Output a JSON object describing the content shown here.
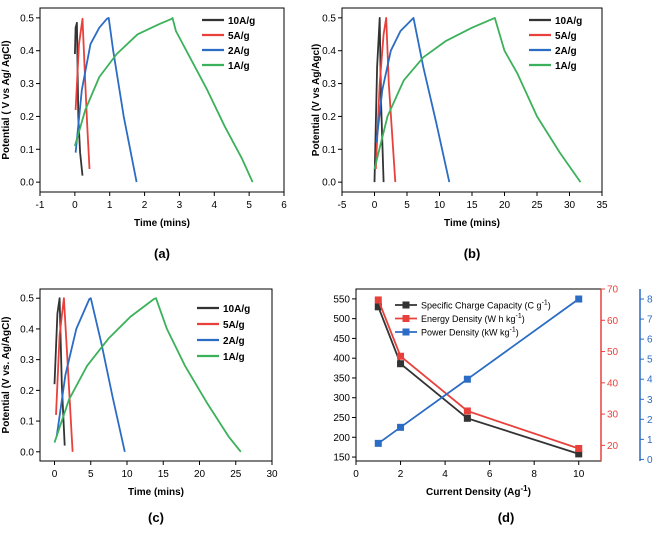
{
  "chart_data": [
    {
      "id": "a",
      "type": "line",
      "panel_label": "(a)",
      "xlabel": "Time (mins)",
      "ylabel": "Potential ( V vs Ag/ AgCl)",
      "xlim": [
        -1,
        6
      ],
      "ylim": [
        -0.03,
        0.53
      ],
      "xticks": [
        "-1",
        "0",
        "1",
        "2",
        "3",
        "4",
        "5",
        "6"
      ],
      "yticks": [
        "0.0",
        "0.1",
        "0.2",
        "0.3",
        "0.4",
        "0.5"
      ],
      "legend_position": "top-right",
      "series": [
        {
          "name": "10A/g",
          "color": "#333333",
          "x": [
            0.0,
            0.02,
            0.06,
            0.1,
            0.15,
            0.22
          ],
          "y": [
            0.39,
            0.47,
            0.485,
            0.2,
            0.09,
            0.02
          ]
        },
        {
          "name": "5A/g",
          "color": "#e8413c",
          "x": [
            0.02,
            0.12,
            0.22,
            0.3,
            0.35,
            0.42
          ],
          "y": [
            0.22,
            0.42,
            0.497,
            0.3,
            0.18,
            0.04
          ]
        },
        {
          "name": "2A/g",
          "color": "#2b6cc4",
          "x": [
            0.02,
            0.2,
            0.45,
            0.7,
            0.92,
            0.97,
            1.1,
            1.4,
            1.77
          ],
          "y": [
            0.09,
            0.28,
            0.42,
            0.47,
            0.497,
            0.5,
            0.4,
            0.2,
            0.0
          ]
        },
        {
          "name": "1A/g",
          "color": "#3cb15b",
          "x": [
            0.0,
            0.3,
            0.7,
            1.2,
            1.8,
            2.4,
            2.78,
            2.8,
            2.9,
            3.3,
            3.8,
            4.3,
            4.8,
            5.1
          ],
          "y": [
            0.11,
            0.22,
            0.32,
            0.39,
            0.45,
            0.48,
            0.497,
            0.5,
            0.46,
            0.38,
            0.28,
            0.17,
            0.07,
            0.0
          ]
        }
      ]
    },
    {
      "id": "b",
      "type": "line",
      "panel_label": "(b)",
      "xlabel": "Time (mins)",
      "ylabel": "Potential (V vs Ag/Agcl)",
      "xlim": [
        -5,
        35
      ],
      "ylim": [
        -0.03,
        0.53
      ],
      "xticks": [
        "-5",
        "0",
        "5",
        "10",
        "15",
        "20",
        "25",
        "30",
        "35"
      ],
      "yticks": [
        "0.0",
        "0.1",
        "0.2",
        "0.3",
        "0.4",
        "0.5"
      ],
      "legend_position": "top-right",
      "series": [
        {
          "name": "10A/g",
          "color": "#333333",
          "x": [
            0.0,
            0.4,
            0.8,
            1.0,
            1.4
          ],
          "y": [
            0.0,
            0.35,
            0.5,
            0.25,
            0.0
          ]
        },
        {
          "name": "5A/g",
          "color": "#e8413c",
          "x": [
            0.2,
            0.8,
            1.4,
            1.8,
            2.2,
            3.2
          ],
          "y": [
            0.04,
            0.3,
            0.45,
            0.5,
            0.3,
            0.0
          ]
        },
        {
          "name": "2A/g",
          "color": "#2b6cc4",
          "x": [
            0.3,
            1.2,
            2.5,
            4.0,
            5.5,
            6.0,
            7.5,
            9.5,
            11.5
          ],
          "y": [
            0.12,
            0.28,
            0.4,
            0.46,
            0.49,
            0.5,
            0.35,
            0.18,
            0.0
          ]
        },
        {
          "name": "1A/g",
          "color": "#3cb15b",
          "x": [
            0.0,
            2.0,
            4.5,
            7.5,
            11.0,
            15.0,
            18.2,
            18.5,
            20.0,
            22.0,
            25.0,
            28.5,
            31.7
          ],
          "y": [
            0.04,
            0.2,
            0.31,
            0.38,
            0.43,
            0.47,
            0.497,
            0.5,
            0.4,
            0.33,
            0.2,
            0.09,
            0.0
          ]
        }
      ]
    },
    {
      "id": "c",
      "type": "line",
      "panel_label": "(c)",
      "xlabel": "Time (mins)",
      "ylabel": "Potential (V vs. Ag/AgCl)",
      "xlim": [
        -2,
        30
      ],
      "ylim": [
        -0.03,
        0.53
      ],
      "xticks": [
        "0",
        "5",
        "10",
        "15",
        "20",
        "25",
        "30"
      ],
      "yticks": [
        "0.0",
        "0.1",
        "0.2",
        "0.3",
        "0.4",
        "0.5"
      ],
      "legend_position": "top-right",
      "series": [
        {
          "name": "10A/g",
          "color": "#333333",
          "x": [
            0.0,
            0.4,
            0.7,
            1.0,
            1.4
          ],
          "y": [
            0.22,
            0.45,
            0.5,
            0.22,
            0.02
          ]
        },
        {
          "name": "5A/g",
          "color": "#e8413c",
          "x": [
            0.2,
            0.7,
            1.3,
            1.9,
            2.5
          ],
          "y": [
            0.12,
            0.38,
            0.5,
            0.25,
            0.0
          ]
        },
        {
          "name": "2A/g",
          "color": "#2b6cc4",
          "x": [
            0.3,
            1.5,
            3.0,
            4.8,
            5.0,
            6.5,
            8.0,
            9.7
          ],
          "y": [
            0.05,
            0.25,
            0.4,
            0.497,
            0.5,
            0.35,
            0.18,
            0.0
          ]
        },
        {
          "name": "1A/g",
          "color": "#3cb15b",
          "x": [
            0.0,
            2.0,
            4.5,
            7.5,
            10.5,
            13.7,
            14.0,
            15.5,
            18.0,
            21.0,
            24.0,
            25.7
          ],
          "y": [
            0.03,
            0.17,
            0.28,
            0.37,
            0.44,
            0.497,
            0.5,
            0.4,
            0.28,
            0.16,
            0.05,
            0.0
          ]
        }
      ]
    },
    {
      "id": "d",
      "type": "line",
      "panel_label": "(d)",
      "xlabel": "Current Density (Ag",
      "xlabel_sup": "-1",
      "xlabel_tail": ")",
      "xlim": [
        0,
        11
      ],
      "xticks": [
        "0",
        "2",
        "4",
        "6",
        "8",
        "10"
      ],
      "left_axis": {
        "ylim": [
          140,
          575
        ],
        "yticks": [
          "150",
          "200",
          "250",
          "300",
          "350",
          "400",
          "450",
          "500",
          "550"
        ],
        "color": "#000000"
      },
      "right_axis_1": {
        "ylim": [
          15,
          70
        ],
        "yticks": [
          "20",
          "30",
          "40",
          "50",
          "60",
          "70"
        ],
        "color": "#e8413c"
      },
      "right_axis_2": {
        "ylim": [
          -0.08,
          8.5
        ],
        "yticks": [
          "0",
          "1",
          "2",
          "3",
          "4",
          "5",
          "6",
          "7",
          "8"
        ],
        "color": "#2b6cc4"
      },
      "legend_position": "top-right",
      "series": [
        {
          "name": "Specific Charge Capacity (C g",
          "unit_sup": "-1",
          "unit_tail": ")",
          "axis": "left",
          "color": "#333333",
          "x": [
            1,
            2,
            5,
            10
          ],
          "y": [
            530,
            386,
            248,
            158
          ]
        },
        {
          "name": "Energy Density (W h kg",
          "unit_sup": "-1",
          "unit_tail": ")",
          "axis": "right_1",
          "color": "#e8413c",
          "x": [
            1,
            2,
            5,
            10
          ],
          "y": [
            66.5,
            48.5,
            31.0,
            19.0
          ]
        },
        {
          "name": "Power Density (kW kg",
          "unit_sup": "-1",
          "unit_tail": ")",
          "axis": "right_2",
          "color": "#2b6cc4",
          "x": [
            1,
            2,
            5,
            10
          ],
          "y": [
            0.8,
            1.6,
            4.0,
            8.0
          ]
        }
      ]
    }
  ]
}
